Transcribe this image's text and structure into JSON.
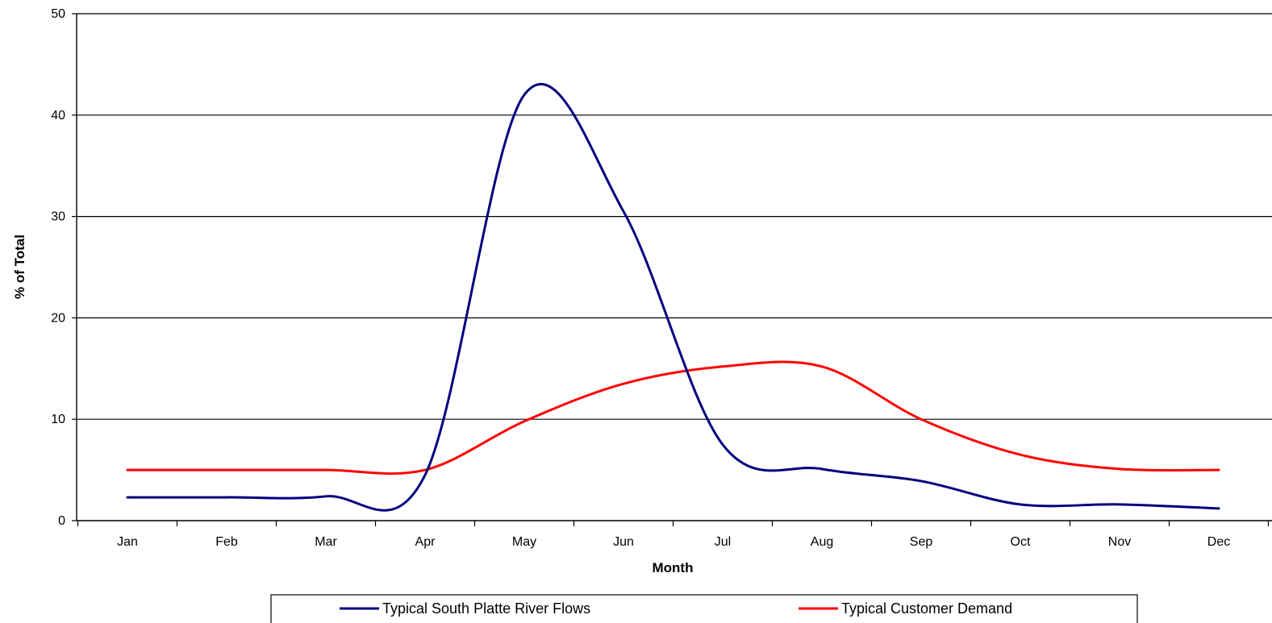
{
  "chart_data": {
    "type": "line",
    "title": "",
    "xlabel": "Month",
    "ylabel": "% of Total",
    "ylim": [
      0,
      50
    ],
    "yticks": [
      0,
      10,
      20,
      30,
      40,
      50
    ],
    "grid": "horizontal",
    "legend_position": "bottom",
    "categories": [
      "Jan",
      "Feb",
      "Mar",
      "Apr",
      "May",
      "Jun",
      "Jul",
      "Aug",
      "Sep",
      "Oct",
      "Nov",
      "Dec"
    ],
    "series": [
      {
        "name": "Typical South Platte River Flows",
        "color": "#000080",
        "values": [
          2.3,
          2.3,
          2.4,
          4.5,
          42.0,
          30.5,
          7.5,
          5.1,
          3.9,
          1.6,
          1.6,
          1.2
        ]
      },
      {
        "name": "Typical Customer Demand",
        "color": "#ff0000",
        "values": [
          5.0,
          5.0,
          5.0,
          5.0,
          9.8,
          13.5,
          15.2,
          15.2,
          10.0,
          6.5,
          5.1,
          5.0
        ]
      }
    ]
  }
}
